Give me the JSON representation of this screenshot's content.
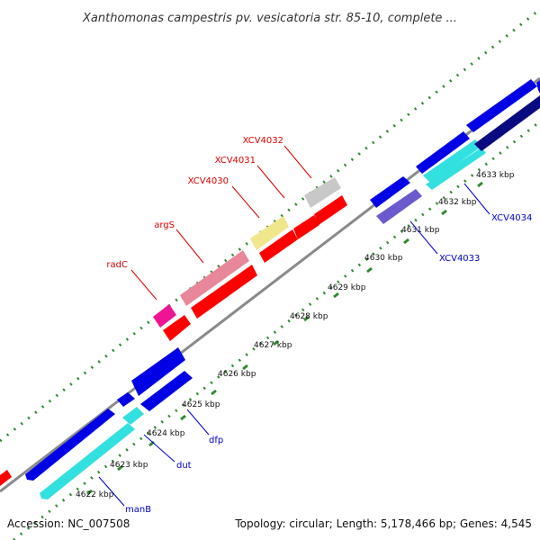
{
  "title": "Xanthomonas campestris pv. vesicatoria str. 85-10, complete ...",
  "footer": {
    "accession": "Accession: NC_007508",
    "summary": "Topology: circular; Length: 5,178,466 bp; Genes: 4,545"
  },
  "scale_labels": [
    "4622 kbp",
    "4623 kbp",
    "4624 kbp",
    "4625 kbp",
    "4626 kbp",
    "4627 kbp",
    "4628 kbp",
    "4629 kbp",
    "4630 kbp",
    "4631 kbp",
    "4632 kbp",
    "4633 kbp"
  ],
  "gene_labels": [
    {
      "text": "radC",
      "color": "red"
    },
    {
      "text": "argS",
      "color": "red"
    },
    {
      "text": "XCV4030",
      "color": "red"
    },
    {
      "text": "XCV4031",
      "color": "red"
    },
    {
      "text": "XCV4032",
      "color": "red"
    },
    {
      "text": "XCV4033",
      "color": "blue"
    },
    {
      "text": "XCV4034",
      "color": "blue"
    },
    {
      "text": "dfp",
      "color": "blue"
    },
    {
      "text": "dut",
      "color": "blue"
    },
    {
      "text": "manB",
      "color": "blue"
    }
  ],
  "colors": {
    "backbone": "#8a8a8a",
    "tick_green": "#2e8b2e",
    "forward_cds": "#ff0000",
    "reverse_cds": "#0000e6",
    "cyan": "#33e0e0",
    "pink": "#e8869a",
    "magenta": "#ee1493",
    "khaki": "#f0e68c",
    "silver": "#c8c8c8",
    "slate": "#6a5acd",
    "navy": "#0a0a80"
  }
}
